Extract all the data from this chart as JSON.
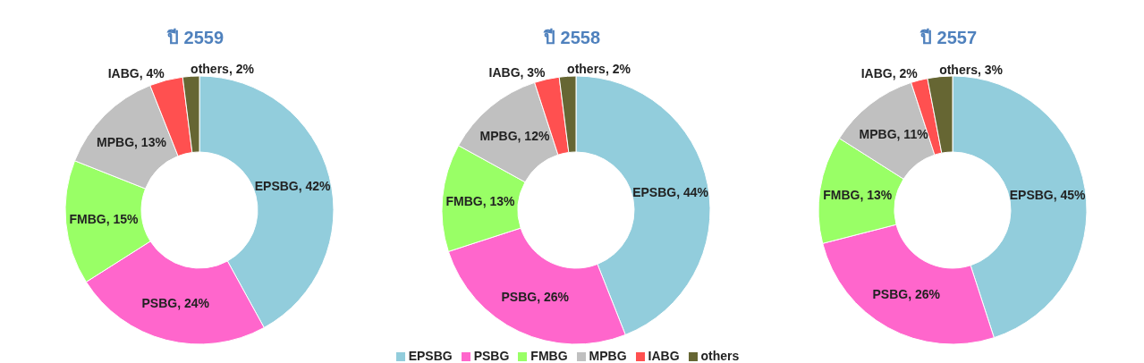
{
  "chart_data": [
    {
      "type": "donut",
      "title": "ปี 2559",
      "categories": [
        "EPSBG",
        "PSBG",
        "FMBG",
        "MPBG",
        "IABG",
        "others"
      ],
      "values": [
        42,
        24,
        15,
        13,
        4,
        2
      ],
      "colors": [
        "#92cddc",
        "#ff66cc",
        "#99ff66",
        "#c0c0c0",
        "#ff5050",
        "#666633"
      ],
      "value_labels": [
        ", 42%",
        ", 24%",
        ", 15%",
        ", 13%",
        ", 4%",
        ", 2%"
      ]
    },
    {
      "type": "donut",
      "title": "ปี 2558",
      "categories": [
        "EPSBG",
        "PSBG",
        "FMBG",
        "MPBG",
        "IABG",
        "others"
      ],
      "values": [
        44,
        26,
        13,
        12,
        3,
        2
      ],
      "colors": [
        "#92cddc",
        "#ff66cc",
        "#99ff66",
        "#c0c0c0",
        "#ff5050",
        "#666633"
      ],
      "value_labels": [
        ", 44%",
        ", 26%",
        ", 13%",
        ", 12%",
        ", 3%",
        ", 2%"
      ],
      "legend": "bottom"
    },
    {
      "type": "donut",
      "title": "ปี 2557",
      "categories": [
        "EPSBG",
        "PSBG",
        "FMBG",
        "MPBG",
        "IABG",
        "others"
      ],
      "values": [
        45,
        26,
        13,
        11,
        2,
        3
      ],
      "colors": [
        "#92cddc",
        "#ff66cc",
        "#99ff66",
        "#c0c0c0",
        "#ff5050",
        "#666633"
      ],
      "value_labels": [
        ", 45%",
        ", 26%",
        ", 13%",
        ", 11%",
        ", 2%",
        ", 3%"
      ]
    }
  ]
}
